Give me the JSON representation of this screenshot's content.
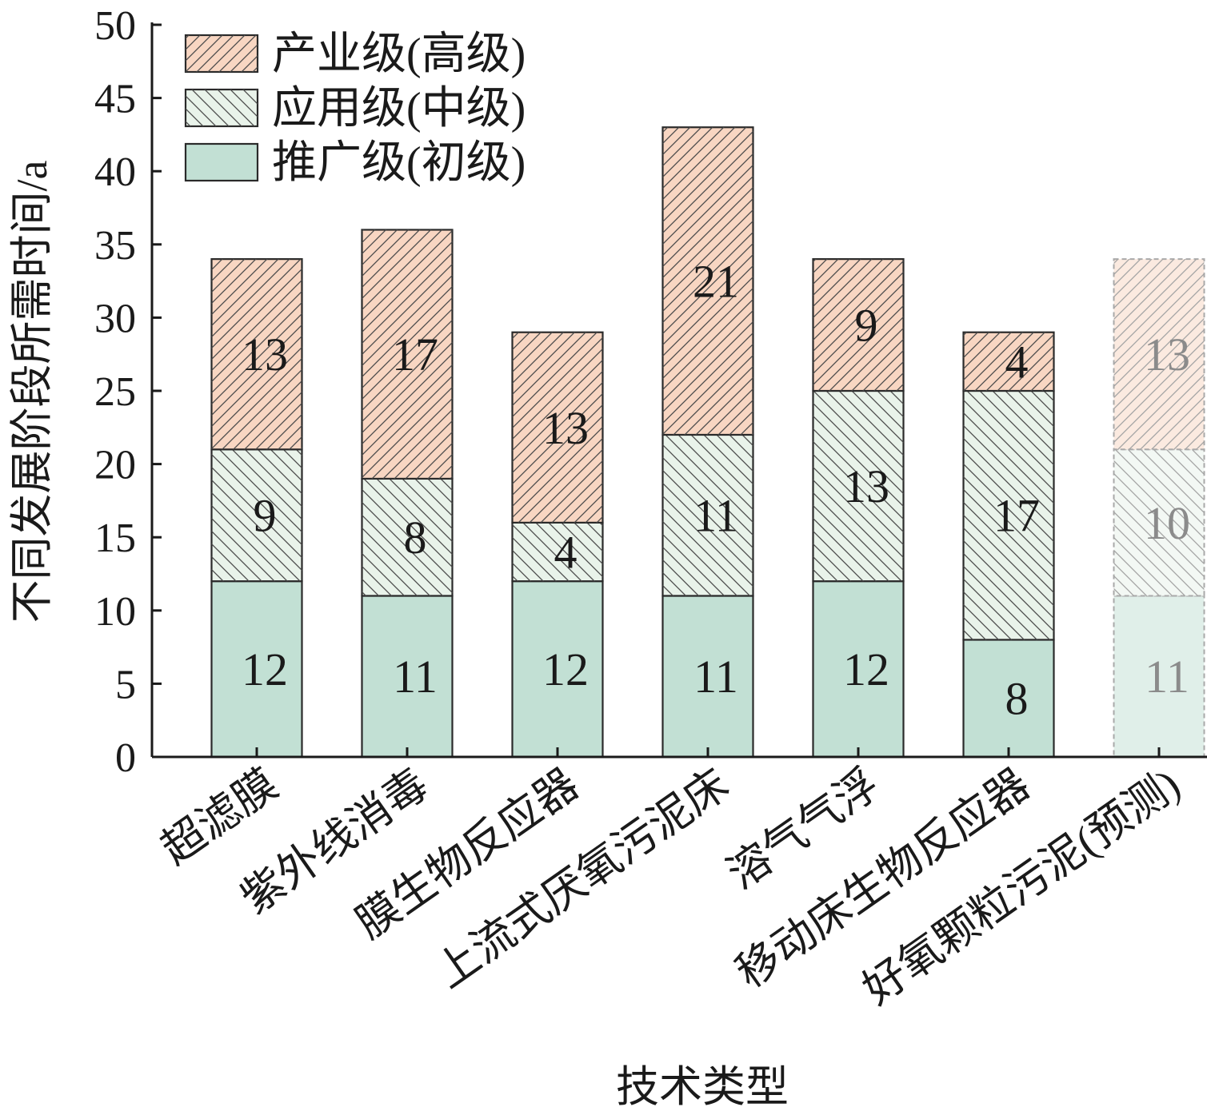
{
  "chart_data": {
    "type": "bar",
    "stacked": true,
    "categories": [
      "超滤膜",
      "紫外线消毒",
      "膜生物反应器",
      "上流式厌氧污泥床",
      "溶气气浮",
      "移动床生物反应器",
      "好氧颗粒污泥(预测)"
    ],
    "series": [
      {
        "name": "推广级(初级)",
        "values": [
          12,
          11,
          12,
          11,
          12,
          8,
          11
        ],
        "color": "#c2e0d4",
        "pattern": "solid"
      },
      {
        "name": "应用级(中级)",
        "values": [
          9,
          8,
          4,
          11,
          13,
          17,
          10
        ],
        "color": "#e9f3ea",
        "pattern": "backslash"
      },
      {
        "name": "产业级(高级)",
        "values": [
          13,
          17,
          13,
          21,
          9,
          4,
          13
        ],
        "color": "#f8d6c2",
        "pattern": "slash"
      }
    ],
    "predicted_index": 6,
    "xlabel": "技术类型",
    "ylabel": "不同发展阶段所需时间/a",
    "ylim": [
      0,
      50
    ],
    "yticks": [
      0,
      5,
      10,
      15,
      20,
      25,
      30,
      35,
      40,
      45,
      50
    ],
    "legend_order": [
      2,
      1,
      0
    ],
    "legend_position": "top-left",
    "grid": false
  }
}
